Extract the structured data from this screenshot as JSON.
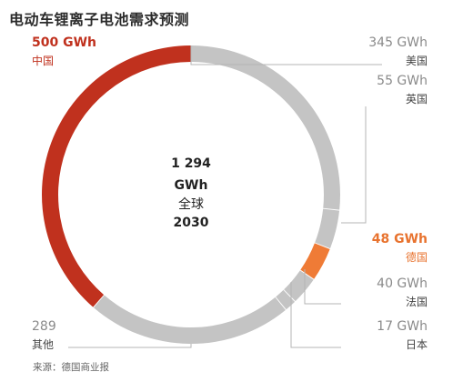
{
  "chart_data": {
    "type": "pie",
    "title": "电动车锂离子电池需求预测",
    "source": "来源：德国商业报",
    "center": {
      "total": "1 294",
      "unit": "GWh",
      "region": "全球",
      "year": "2030"
    },
    "slices": [
      {
        "name": "美国",
        "value": 345,
        "value_label": "345 GWh",
        "color": "#c4c4c4",
        "label_color": "#8a8a8a",
        "name_color": "#444444"
      },
      {
        "name": "英国",
        "value": 55,
        "value_label": "55 GWh",
        "color": "#c4c4c4",
        "label_color": "#8a8a8a",
        "name_color": "#444444"
      },
      {
        "name": "德国",
        "value": 48,
        "value_label": "48 GWh",
        "color": "#ef7b36",
        "label_color": "#e8732f",
        "name_color": "#e8732f"
      },
      {
        "name": "法国",
        "value": 40,
        "value_label": "40 GWh",
        "color": "#c4c4c4",
        "label_color": "#8a8a8a",
        "name_color": "#444444"
      },
      {
        "name": "日本",
        "value": 17,
        "value_label": "17 GWh",
        "color": "#c4c4c4",
        "label_color": "#8a8a8a",
        "name_color": "#444444"
      },
      {
        "name": "其他",
        "value": 289,
        "value_label": "289",
        "color": "#c4c4c4",
        "label_color": "#8a8a8a",
        "name_color": "#444444"
      },
      {
        "name": "中国",
        "value": 500,
        "value_label": "500 GWh",
        "color": "#c0311e",
        "label_color": "#c0311e",
        "name_color": "#c0311e"
      }
    ]
  }
}
